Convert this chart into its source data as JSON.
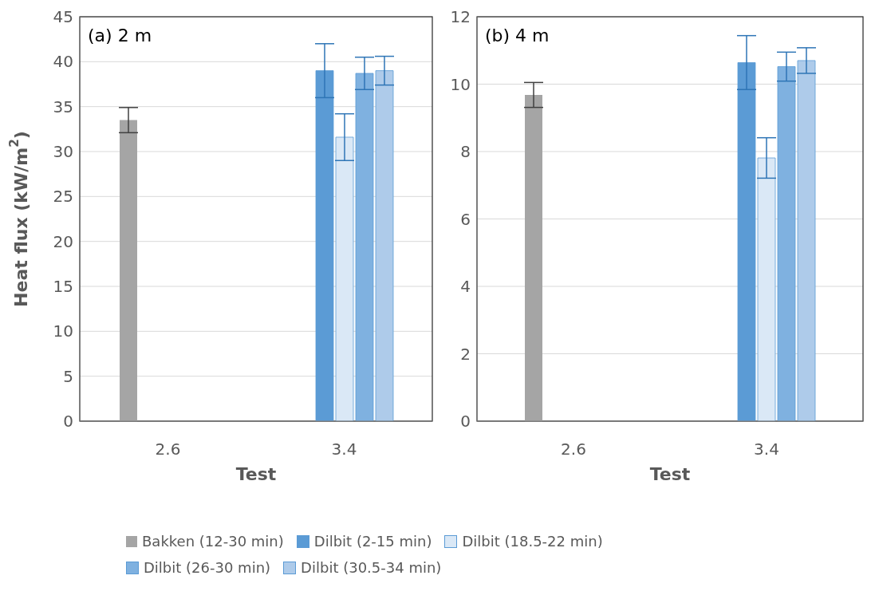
{
  "chart_data": [
    {
      "type": "bar",
      "title": "(a) 2 m",
      "xlabel": "Test",
      "ylabel": "Heat flux (kW/m$^{2}$)",
      "categories": [
        "2.6",
        "3.4"
      ],
      "ylim": [
        0,
        45
      ],
      "yticks": [
        0,
        5,
        10,
        15,
        20,
        25,
        30,
        35,
        40,
        45
      ],
      "grid": "y",
      "legend": "bottom",
      "series": [
        {
          "name": "Bakken (12-30 min)",
          "color": "#a5a5a5",
          "values": [
            33.5,
            null
          ],
          "errors": [
            1.4,
            null
          ]
        },
        {
          "name": "Dilbit (2-15 min)",
          "color": "#5b9bd5",
          "values": [
            null,
            39.0
          ],
          "errors": [
            null,
            3.0
          ]
        },
        {
          "name": "Dilbit (18.5-22 min)",
          "color": "#dae8f6",
          "values": [
            null,
            31.6
          ],
          "errors": [
            null,
            2.6
          ]
        },
        {
          "name": "Dilbit (26-30 min)",
          "color": "#7fb1e0",
          "values": [
            null,
            38.7
          ],
          "errors": [
            null,
            1.8
          ]
        },
        {
          "name": "Dilbit (30.5-34 min)",
          "color": "#aecbea",
          "values": [
            null,
            39.0
          ],
          "errors": [
            null,
            1.6
          ]
        }
      ]
    },
    {
      "type": "bar",
      "title": "(b) 4 m",
      "xlabel": "Test",
      "categories": [
        "2.6",
        "3.4"
      ],
      "ylim": [
        0,
        12
      ],
      "yticks": [
        0,
        2,
        4,
        6,
        8,
        10,
        12
      ],
      "grid": "y",
      "series": [
        {
          "color": "#a5a5a5",
          "values": [
            9.68,
            null
          ],
          "errors": [
            0.37,
            null
          ]
        },
        {
          "color": "#5b9bd5",
          "values": [
            null,
            10.64
          ],
          "errors": [
            null,
            0.8
          ]
        },
        {
          "color": "#dae8f6",
          "values": [
            null,
            7.81
          ],
          "errors": [
            null,
            0.6
          ]
        },
        {
          "color": "#7fb1e0",
          "values": [
            null,
            10.52
          ],
          "errors": [
            null,
            0.43
          ]
        },
        {
          "color": "#aecbea",
          "values": [
            null,
            10.7
          ],
          "errors": [
            null,
            0.38
          ]
        }
      ]
    }
  ]
}
